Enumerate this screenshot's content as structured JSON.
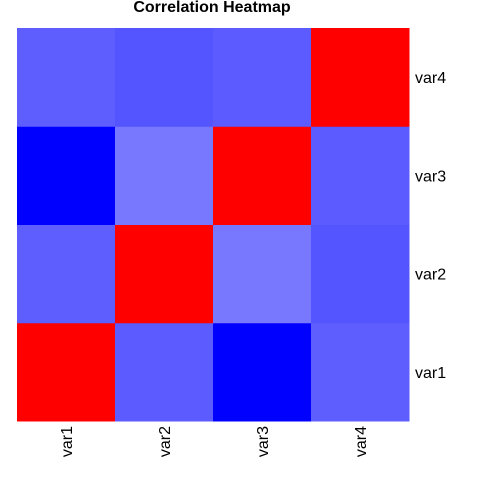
{
  "chart_data": {
    "type": "heatmap",
    "title": "Correlation Heatmap",
    "xlabel": "",
    "ylabel": "",
    "x_categories": [
      "var1",
      "var2",
      "var3",
      "var4"
    ],
    "y_categories": [
      "var1",
      "var2",
      "var3",
      "var4"
    ],
    "y_axis_position": "right",
    "x_tick_rotation": "vertical",
    "color_scale": {
      "low": "#0000ff",
      "high": "#ff0000"
    },
    "cells": [
      {
        "x": "var1",
        "y": "var1",
        "color": "#ff0000"
      },
      {
        "x": "var2",
        "y": "var1",
        "color": "#5b5bff"
      },
      {
        "x": "var3",
        "y": "var1",
        "color": "#0000ff"
      },
      {
        "x": "var4",
        "y": "var1",
        "color": "#5e5eff"
      },
      {
        "x": "var1",
        "y": "var2",
        "color": "#5e5eff"
      },
      {
        "x": "var2",
        "y": "var2",
        "color": "#ff0000"
      },
      {
        "x": "var3",
        "y": "var2",
        "color": "#7878ff"
      },
      {
        "x": "var4",
        "y": "var2",
        "color": "#5555ff"
      },
      {
        "x": "var1",
        "y": "var3",
        "color": "#0000ff"
      },
      {
        "x": "var2",
        "y": "var3",
        "color": "#7878ff"
      },
      {
        "x": "var3",
        "y": "var3",
        "color": "#ff0000"
      },
      {
        "x": "var4",
        "y": "var3",
        "color": "#5b5bff"
      },
      {
        "x": "var1",
        "y": "var4",
        "color": "#5e5eff"
      },
      {
        "x": "var2",
        "y": "var4",
        "color": "#5555ff"
      },
      {
        "x": "var3",
        "y": "var4",
        "color": "#5b5bff"
      },
      {
        "x": "var4",
        "y": "var4",
        "color": "#ff0000"
      }
    ]
  }
}
